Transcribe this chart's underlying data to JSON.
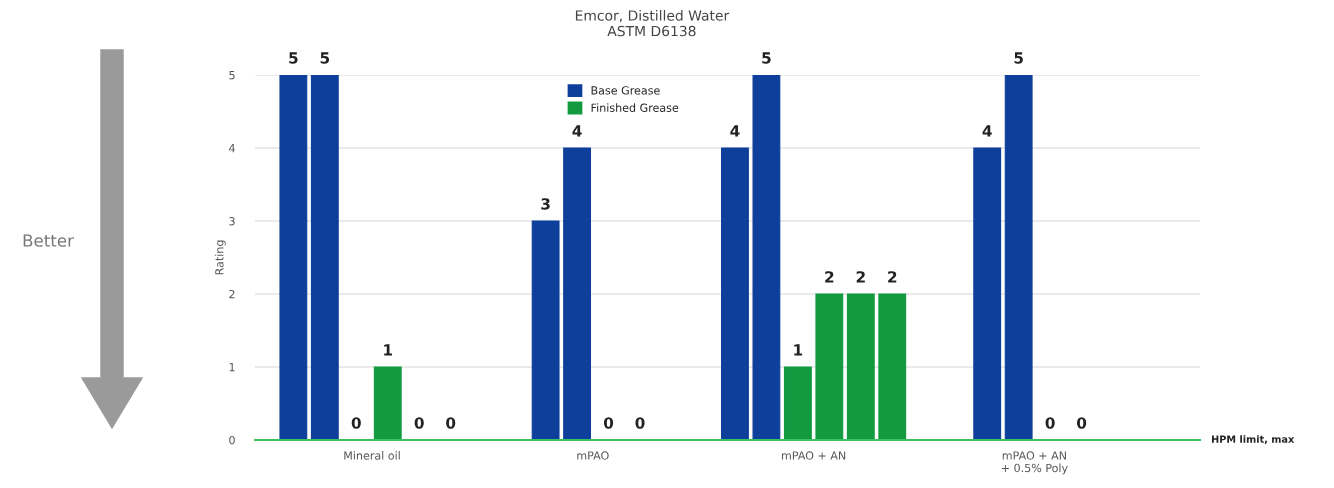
{
  "chart_data": {
    "type": "bar",
    "title": "Emcor, Distilled Water\nASTM D6138",
    "ylabel": "Rating",
    "categories": [
      "Mineral oil",
      "mPAO",
      "mPAO + AN",
      "mPAO + AN\n+ 0.5% Poly"
    ],
    "ylim": [
      0,
      5
    ],
    "yticks": [
      0,
      1,
      2,
      3,
      4,
      5
    ],
    "series": [
      {
        "name": "Base Grease",
        "color": "#0e3f9b",
        "values": [
          5,
          3,
          4,
          4
        ]
      },
      {
        "color": "#0e3f9b",
        "values": [
          5,
          4,
          5,
          5
        ]
      },
      {
        "name": "Finished Grease",
        "color": "#139a41",
        "values": [
          0,
          0,
          1,
          0
        ]
      },
      {
        "color": "#139a41",
        "values": [
          1,
          0,
          2,
          0
        ]
      },
      {
        "color": "#139a41",
        "values": [
          0,
          null,
          2,
          null
        ]
      },
      {
        "color": "#139a41",
        "values": [
          0,
          null,
          2,
          null
        ]
      }
    ],
    "data_labels": true,
    "grid": "y",
    "legend": "top",
    "annotations": [
      "Better",
      "HPM limit, max"
    ]
  }
}
